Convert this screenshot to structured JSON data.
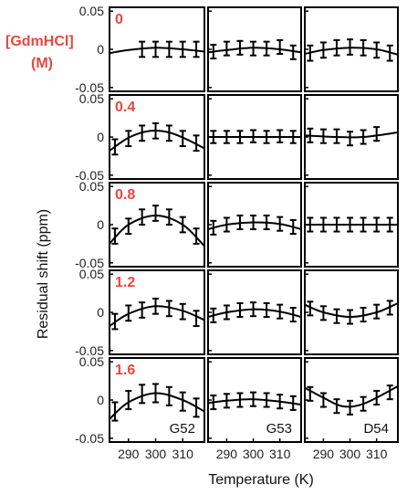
{
  "chart_data": {
    "type": "line",
    "legend_title_line1": "[GdmHCl]",
    "legend_title_line2": "(M)",
    "xlabel": "Temperature (K)",
    "ylabel": "Residual shift (ppm)",
    "xlim": [
      283,
      318
    ],
    "ylim": [
      -0.055,
      0.055
    ],
    "x_ticks": [
      290,
      300,
      310
    ],
    "y_ticks": [
      0.05,
      0,
      -0.05
    ],
    "y_tick_labels": [
      "0.05",
      "0",
      "-0.05"
    ],
    "residues": [
      "G52",
      "G53",
      "D54"
    ],
    "concentrations": [
      "0",
      "0.4",
      "0.8",
      "1.2",
      "1.6"
    ],
    "panels": [
      [
        {
          "points": [
            {
              "x": 295,
              "y": 0
            },
            {
              "x": 300,
              "y": 0
            },
            {
              "x": 305,
              "y": 0
            },
            {
              "x": 310,
              "y": 0
            },
            {
              "x": 315,
              "y": 0
            }
          ],
          "err": 0.01,
          "curve": [
            [
              283,
              -0.005
            ],
            [
              290,
              -0.001
            ],
            [
              300,
              0.002
            ],
            [
              310,
              0.0
            ],
            [
              318,
              -0.003
            ]
          ]
        },
        {
          "points": [
            {
              "x": 285,
              "y": -0.003
            },
            {
              "x": 290,
              "y": 0.001
            },
            {
              "x": 295,
              "y": 0.002
            },
            {
              "x": 300,
              "y": 0.001
            },
            {
              "x": 305,
              "y": 0.001
            },
            {
              "x": 310,
              "y": 0.003
            },
            {
              "x": 315,
              "y": -0.004
            }
          ],
          "err": 0.009,
          "curve": [
            [
              283,
              -0.004
            ],
            [
              290,
              -0.001
            ],
            [
              300,
              0.002
            ],
            [
              310,
              0.0
            ],
            [
              318,
              -0.004
            ]
          ]
        },
        {
          "points": [
            {
              "x": 285,
              "y": -0.005
            },
            {
              "x": 290,
              "y": -0.001
            },
            {
              "x": 295,
              "y": 0.002
            },
            {
              "x": 300,
              "y": 0.003
            },
            {
              "x": 305,
              "y": 0.002
            },
            {
              "x": 310,
              "y": -0.001
            },
            {
              "x": 315,
              "y": -0.005
            }
          ],
          "err": 0.01,
          "curve": [
            [
              283,
              -0.006
            ],
            [
              290,
              -0.001
            ],
            [
              300,
              0.002
            ],
            [
              310,
              0.0
            ],
            [
              318,
              -0.007
            ]
          ]
        }
      ],
      [
        {
          "points": [
            {
              "x": 285,
              "y": -0.013
            },
            {
              "x": 290,
              "y": -0.002
            },
            {
              "x": 295,
              "y": 0.005
            },
            {
              "x": 300,
              "y": 0.008
            },
            {
              "x": 305,
              "y": 0.005
            },
            {
              "x": 310,
              "y": -0.002
            },
            {
              "x": 315,
              "y": -0.008
            }
          ],
          "err": 0.01,
          "curve": [
            [
              283,
              -0.018
            ],
            [
              290,
              -0.001
            ],
            [
              298,
              0.008
            ],
            [
              305,
              0.006
            ],
            [
              312,
              -0.004
            ],
            [
              318,
              -0.015
            ]
          ]
        },
        {
          "points": [
            {
              "x": 285,
              "y": 0.0
            },
            {
              "x": 290,
              "y": 0.0
            },
            {
              "x": 295,
              "y": 0.0
            },
            {
              "x": 300,
              "y": 0.001
            },
            {
              "x": 305,
              "y": 0.0
            },
            {
              "x": 310,
              "y": 0.001
            },
            {
              "x": 315,
              "y": 0.0
            }
          ],
          "err": 0.008,
          "curve": [
            [
              283,
              0.0
            ],
            [
              300,
              0.0
            ],
            [
              318,
              0.0
            ]
          ]
        },
        {
          "points": [
            {
              "x": 285,
              "y": 0.002
            },
            {
              "x": 290,
              "y": 0.001
            },
            {
              "x": 295,
              "y": 0.001
            },
            {
              "x": 300,
              "y": -0.002
            },
            {
              "x": 305,
              "y": 0.0
            },
            {
              "x": 310,
              "y": 0.004
            }
          ],
          "err": 0.009,
          "curve": [
            [
              283,
              0.002
            ],
            [
              295,
              0.0
            ],
            [
              305,
              0.0
            ],
            [
              318,
              0.006
            ]
          ]
        }
      ],
      [
        {
          "points": [
            {
              "x": 285,
              "y": -0.015
            },
            {
              "x": 290,
              "y": -0.002
            },
            {
              "x": 295,
              "y": 0.01
            },
            {
              "x": 300,
              "y": 0.015
            },
            {
              "x": 305,
              "y": 0.01
            },
            {
              "x": 310,
              "y": 0.0
            },
            {
              "x": 315,
              "y": -0.015
            }
          ],
          "err": 0.01,
          "curve": [
            [
              283,
              -0.025
            ],
            [
              290,
              0.0
            ],
            [
              300,
              0.012
            ],
            [
              310,
              0.0
            ],
            [
              318,
              -0.028
            ]
          ]
        },
        {
          "points": [
            {
              "x": 285,
              "y": -0.004
            },
            {
              "x": 290,
              "y": 0.0
            },
            {
              "x": 295,
              "y": 0.003
            },
            {
              "x": 300,
              "y": 0.003
            },
            {
              "x": 305,
              "y": 0.003
            },
            {
              "x": 310,
              "y": 0.001
            },
            {
              "x": 315,
              "y": -0.003
            }
          ],
          "err": 0.009,
          "curve": [
            [
              283,
              -0.006
            ],
            [
              290,
              0.0
            ],
            [
              300,
              0.003
            ],
            [
              310,
              0.001
            ],
            [
              318,
              -0.006
            ]
          ]
        },
        {
          "points": [
            {
              "x": 285,
              "y": 0.0
            },
            {
              "x": 290,
              "y": 0.0
            },
            {
              "x": 295,
              "y": 0.0
            },
            {
              "x": 300,
              "y": 0.0
            },
            {
              "x": 305,
              "y": 0.0
            },
            {
              "x": 310,
              "y": 0.0
            },
            {
              "x": 315,
              "y": 0.0
            }
          ],
          "err": 0.009,
          "curve": [
            [
              283,
              0.0
            ],
            [
              318,
              0.0
            ]
          ]
        }
      ],
      [
        {
          "points": [
            {
              "x": 285,
              "y": -0.012
            },
            {
              "x": 290,
              "y": -0.001
            },
            {
              "x": 295,
              "y": 0.003
            },
            {
              "x": 300,
              "y": 0.008
            },
            {
              "x": 305,
              "y": 0.005
            },
            {
              "x": 310,
              "y": 0.001
            },
            {
              "x": 315,
              "y": -0.008
            }
          ],
          "err": 0.01,
          "curve": [
            [
              283,
              -0.018
            ],
            [
              290,
              -0.002
            ],
            [
              300,
              0.008
            ],
            [
              310,
              0.002
            ],
            [
              318,
              -0.01
            ]
          ]
        },
        {
          "points": [
            {
              "x": 285,
              "y": -0.004
            },
            {
              "x": 290,
              "y": 0.0
            },
            {
              "x": 295,
              "y": 0.003
            },
            {
              "x": 300,
              "y": 0.004
            },
            {
              "x": 305,
              "y": 0.003
            },
            {
              "x": 310,
              "y": 0.001
            },
            {
              "x": 315,
              "y": -0.003
            }
          ],
          "err": 0.009,
          "curve": [
            [
              283,
              -0.006
            ],
            [
              290,
              0.0
            ],
            [
              300,
              0.004
            ],
            [
              310,
              0.001
            ],
            [
              318,
              -0.006
            ]
          ]
        },
        {
          "points": [
            {
              "x": 285,
              "y": 0.005
            },
            {
              "x": 290,
              "y": -0.001
            },
            {
              "x": 295,
              "y": -0.005
            },
            {
              "x": 300,
              "y": -0.006
            },
            {
              "x": 305,
              "y": -0.003
            },
            {
              "x": 310,
              "y": 0.001
            },
            {
              "x": 315,
              "y": 0.006
            }
          ],
          "err": 0.009,
          "curve": [
            [
              283,
              0.01
            ],
            [
              290,
              0.0
            ],
            [
              300,
              -0.006
            ],
            [
              310,
              0.0
            ],
            [
              318,
              0.012
            ]
          ]
        }
      ],
      [
        {
          "points": [
            {
              "x": 285,
              "y": -0.015
            },
            {
              "x": 290,
              "y": 0.0
            },
            {
              "x": 295,
              "y": 0.008
            },
            {
              "x": 300,
              "y": 0.009
            },
            {
              "x": 305,
              "y": 0.005
            },
            {
              "x": 310,
              "y": -0.002
            },
            {
              "x": 315,
              "y": -0.01
            }
          ],
          "err": 0.012,
          "curve": [
            [
              283,
              -0.025
            ],
            [
              290,
              -0.003
            ],
            [
              300,
              0.009
            ],
            [
              310,
              0.0
            ],
            [
              318,
              -0.015
            ]
          ]
        },
        {
          "points": [
            {
              "x": 285,
              "y": -0.003
            },
            {
              "x": 290,
              "y": -0.001
            },
            {
              "x": 295,
              "y": 0.0
            },
            {
              "x": 300,
              "y": 0.001
            },
            {
              "x": 305,
              "y": 0.0
            },
            {
              "x": 310,
              "y": -0.002
            },
            {
              "x": 315,
              "y": -0.004
            }
          ],
          "err": 0.009,
          "curve": [
            [
              283,
              -0.004
            ],
            [
              290,
              -0.001
            ],
            [
              300,
              0.001
            ],
            [
              310,
              -0.002
            ],
            [
              318,
              -0.006
            ]
          ]
        },
        {
          "points": [
            {
              "x": 285,
              "y": 0.008
            },
            {
              "x": 290,
              "y": 0.0
            },
            {
              "x": 295,
              "y": -0.008
            },
            {
              "x": 300,
              "y": -0.01
            },
            {
              "x": 305,
              "y": -0.005
            },
            {
              "x": 310,
              "y": 0.003
            },
            {
              "x": 315,
              "y": 0.01
            }
          ],
          "err": 0.009,
          "curve": [
            [
              283,
              0.016
            ],
            [
              290,
              0.003
            ],
            [
              297,
              -0.008
            ],
            [
              305,
              -0.005
            ],
            [
              318,
              0.018
            ]
          ]
        }
      ]
    ]
  }
}
